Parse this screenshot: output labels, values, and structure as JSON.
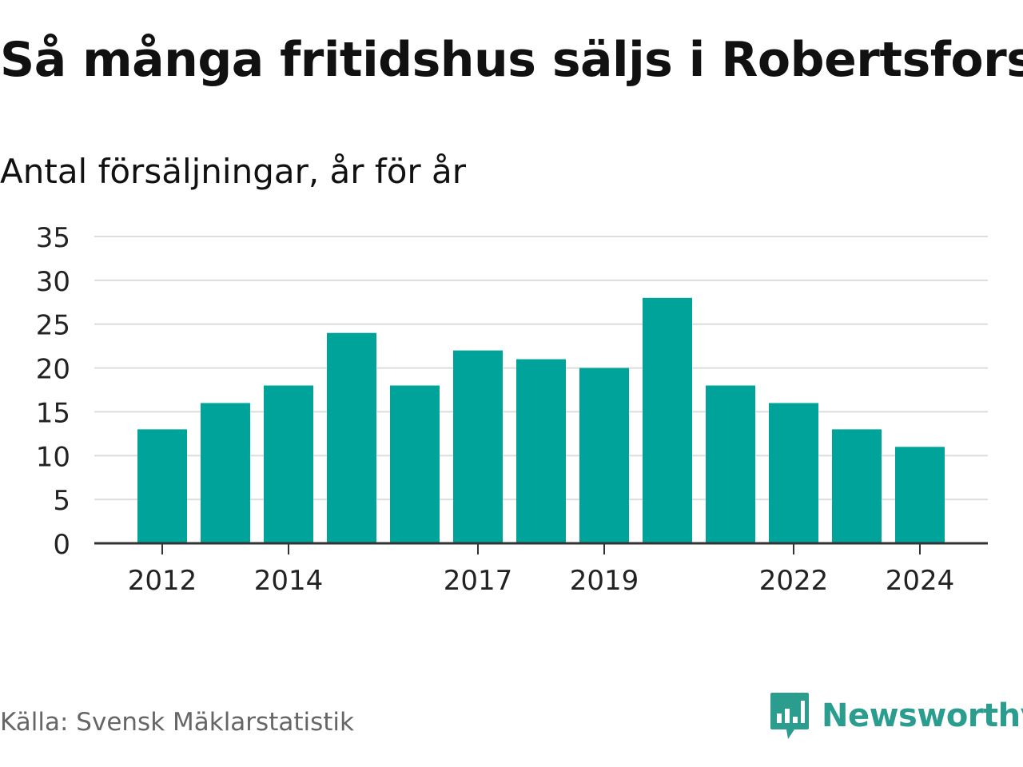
{
  "title": "Så många fritidshus säljs i Robertsfors",
  "subtitle": "Antal försäljningar, år för år",
  "source": "Källa: Svensk Mäklarstatistik",
  "brand": {
    "name": "Newsworthy",
    "icon": "newsworthy-logo-icon",
    "color": "#2a9d8f"
  },
  "colors": {
    "bar": "#00a39a",
    "grid": "#dddddd",
    "axis": "#333333",
    "text": "#222222"
  },
  "chart_data": {
    "type": "bar",
    "categories": [
      "2012",
      "2013",
      "2014",
      "2015",
      "2016",
      "2017",
      "2018",
      "2019",
      "2020",
      "2021",
      "2022",
      "2023",
      "2024"
    ],
    "values": [
      13,
      16,
      18,
      24,
      18,
      22,
      21,
      20,
      28,
      18,
      16,
      13,
      11
    ],
    "x_tick_labels": [
      "2012",
      "2014",
      "2017",
      "2019",
      "2022",
      "2024"
    ],
    "y_ticks": [
      0,
      5,
      10,
      15,
      20,
      25,
      30,
      35
    ],
    "ylim": [
      0,
      35
    ],
    "xlabel": "",
    "ylabel": "",
    "grid": true,
    "legend": "none"
  }
}
